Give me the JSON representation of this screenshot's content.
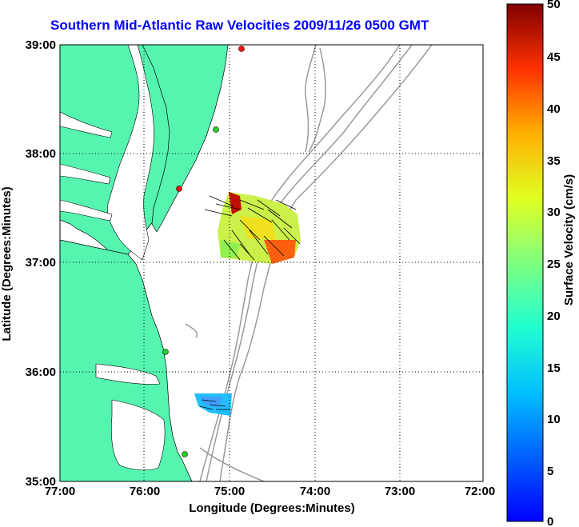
{
  "title": "Southern Mid-Atlantic Raw Velocities 2009/11/26 0500 GMT",
  "x_axis": {
    "label": "Longitude (Degrees:Minutes)",
    "ticks": [
      "77:00",
      "76:00",
      "75:00",
      "74:00",
      "73:00",
      "72:00"
    ]
  },
  "y_axis": {
    "label": "Latitude (Degrees:Minutes)",
    "ticks": [
      "39:00",
      "38:00",
      "37:00",
      "36:00",
      "35:00"
    ]
  },
  "colorbar": {
    "label": "Surface Velocity (cm/s)",
    "ticks": [
      "50",
      "45",
      "40",
      "35",
      "30",
      "25",
      "20",
      "15",
      "10",
      "5",
      "0"
    ],
    "colors": {
      "land": "#55f5b0",
      "bathymetry": "#9a9a9a",
      "site_active": "#22d522",
      "site_alert": "#ff1010"
    }
  }
}
